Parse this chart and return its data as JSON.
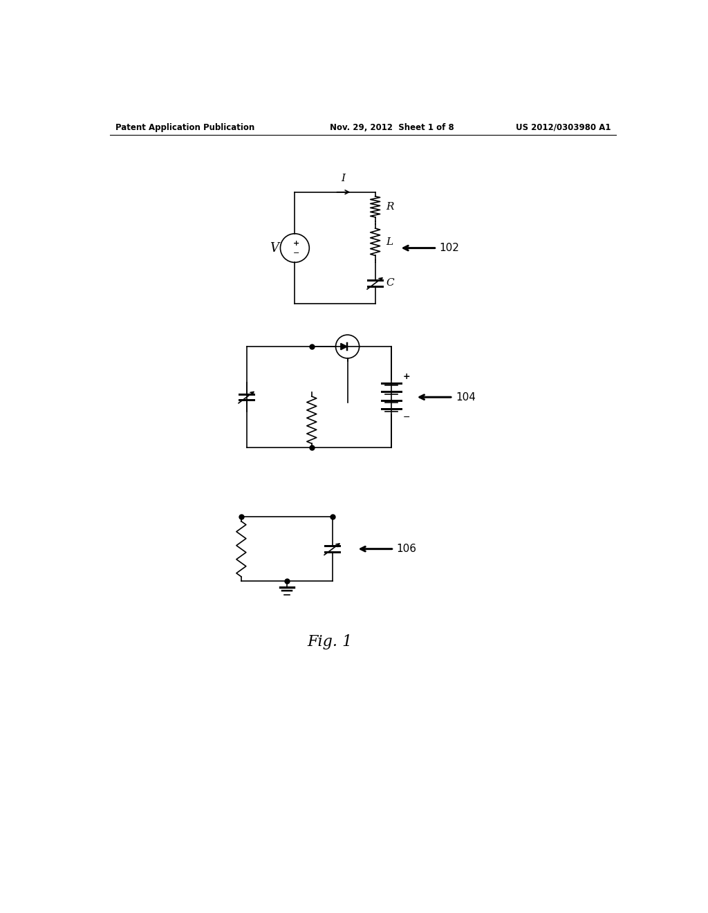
{
  "background_color": "#ffffff",
  "header_left": "Patent Application Publication",
  "header_center": "Nov. 29, 2012  Sheet 1 of 8",
  "header_right": "US 2012/0303980 A1",
  "figure_label": "Fig. 1",
  "circuit1_label": "102",
  "circuit2_label": "104",
  "circuit3_label": "106",
  "text_color": "#000000",
  "line_color": "#000000",
  "line_width": 1.2
}
